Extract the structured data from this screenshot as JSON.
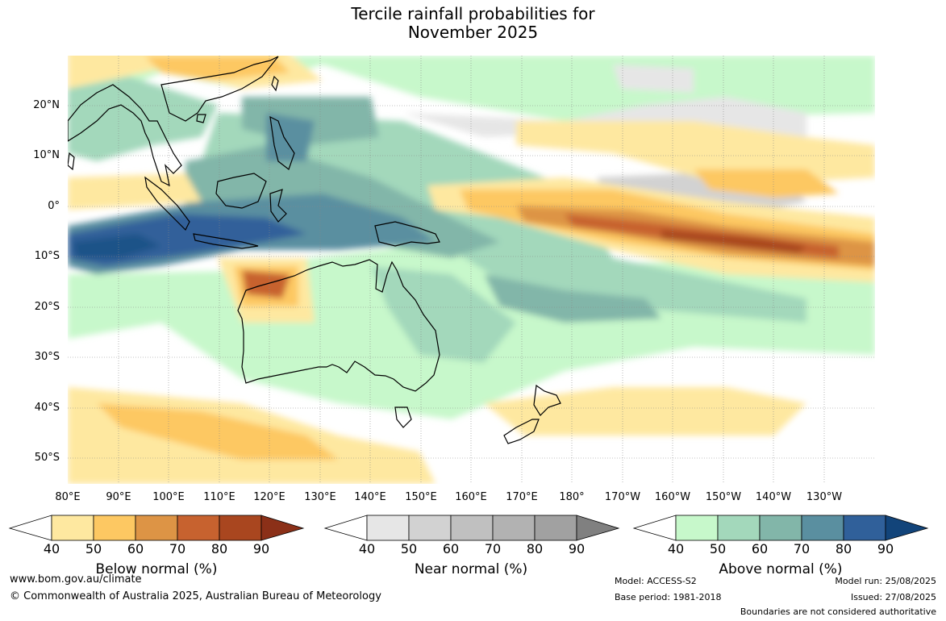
{
  "title_line1": "Tercile rainfall probabilities for",
  "title_line2": "November 2025",
  "lat_labels": [
    "20°N",
    "10°N",
    "0°",
    "10°S",
    "20°S",
    "30°S",
    "40°S",
    "50°S"
  ],
  "lon_labels": [
    "80°E",
    "90°E",
    "100°E",
    "110°E",
    "120°E",
    "130°E",
    "140°E",
    "150°E",
    "160°E",
    "170°E",
    "180°",
    "170°W",
    "160°W",
    "150°W",
    "140°W",
    "130°W"
  ],
  "colorbars": {
    "below": {
      "title": "Below normal (%)",
      "ticks": [
        "40",
        "50",
        "60",
        "70",
        "80",
        "90"
      ],
      "colors": [
        "#fee8a0",
        "#fdc862",
        "#dd9445",
        "#c7622f",
        "#a9461f",
        "#8b3018"
      ]
    },
    "near": {
      "title": "Near normal (%)",
      "ticks": [
        "40",
        "50",
        "60",
        "70",
        "80",
        "90"
      ],
      "colors": [
        "#e6e6e6",
        "#d2d2d2",
        "#c0c0c0",
        "#b2b2b2",
        "#a1a1a1",
        "#808080"
      ]
    },
    "above": {
      "title": "Above normal (%)",
      "ticks": [
        "40",
        "50",
        "60",
        "70",
        "80",
        "90"
      ],
      "colors": [
        "#c7f8cb",
        "#a3d8bb",
        "#82b6a9",
        "#5a8fa0",
        "#30609a",
        "#12447a"
      ]
    }
  },
  "footer": {
    "website": "www.bom.gov.au/climate",
    "copyright": "© Commonwealth of Australia 2025, Australian Bureau of Meteorology",
    "model": "Model: ACCESS-S2",
    "base_period": "Base period: 1981-2018",
    "model_run": "Model run: 25/08/2025",
    "issued": "Issued: 27/08/2025",
    "disclaimer": "Boundaries are not considered authoritative"
  }
}
